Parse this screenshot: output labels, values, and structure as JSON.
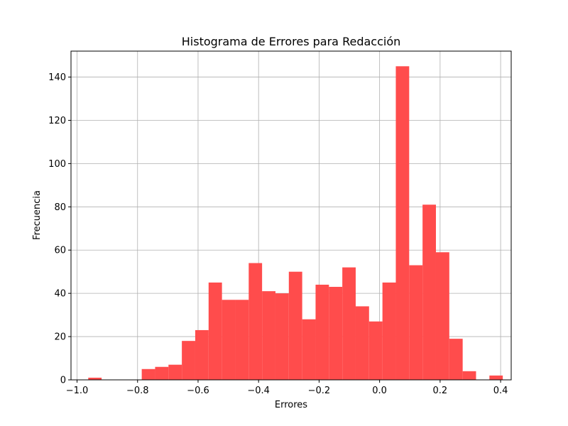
{
  "chart_data": {
    "type": "bar",
    "title": "Histograma de Errores para Redacción",
    "xlabel": "Errores",
    "ylabel": "Frecuencia",
    "xlim": [
      -1.02,
      0.435
    ],
    "ylim": [
      0,
      152
    ],
    "grid": true,
    "bar_color": "#ff4c4c",
    "xticks": [
      -1.0,
      -0.8,
      -0.6,
      -0.4,
      -0.2,
      0.0,
      0.2,
      0.4
    ],
    "xtick_labels": [
      "−1.0",
      "−0.8",
      "−0.6",
      "−0.4",
      "−0.2",
      "0.0",
      "0.2",
      "0.4"
    ],
    "yticks": [
      0,
      20,
      40,
      60,
      80,
      100,
      120,
      140
    ],
    "ytick_labels": [
      "0",
      "20",
      "40",
      "60",
      "80",
      "100",
      "120",
      "140"
    ],
    "bin_start": -0.963,
    "bin_width": 0.0442,
    "values": [
      1,
      0,
      0,
      0,
      5,
      6,
      7,
      18,
      23,
      45,
      37,
      37,
      54,
      41,
      40,
      50,
      28,
      44,
      43,
      52,
      34,
      27,
      45,
      145,
      53,
      81,
      59,
      19,
      4,
      0,
      2
    ]
  }
}
